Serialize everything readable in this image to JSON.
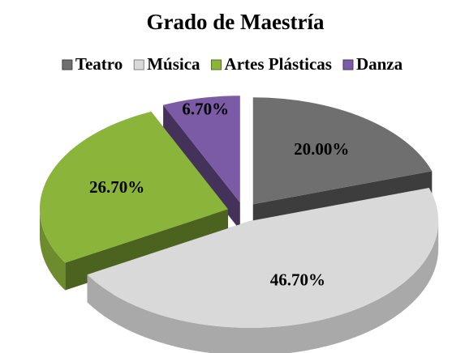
{
  "chart_data": {
    "type": "pie",
    "title": "Grado de Maestría",
    "categories": [
      "Teatro",
      "Música",
      "Artes Plásticas",
      "Danza"
    ],
    "values": [
      20,
      46.7,
      26.7,
      6.7
    ],
    "value_labels": [
      "20.00%",
      "46.70%",
      "26.70%",
      "6.70%"
    ],
    "colors": [
      "#6f6f6f",
      "#d9d9d9",
      "#8ab43a",
      "#7b5aa6"
    ],
    "legend": "top"
  }
}
